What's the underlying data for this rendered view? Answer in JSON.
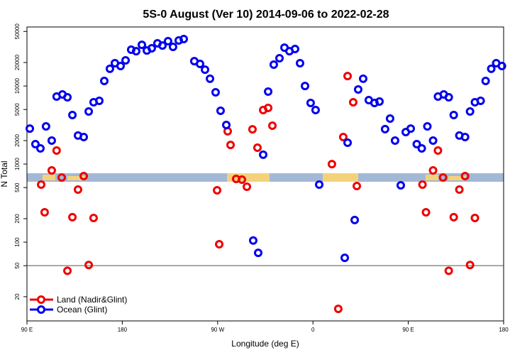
{
  "chart_data": {
    "type": "scatter",
    "title": "5S-0 August (Ver 10)   2014-09-06 to 2022-02-28",
    "xlabel": "Longitude (deg E)",
    "ylabel": "N Total",
    "xlim": [
      90,
      540
    ],
    "xticks": [
      {
        "value": 90,
        "label": "90 E"
      },
      180,
      {
        "value": 270,
        "label": "90 W"
      },
      {
        "value": 360,
        "label": "0"
      },
      {
        "value": 450,
        "label": "90 E"
      },
      {
        "value": 540,
        "label": "180"
      }
    ],
    "ylim": [
      9.8,
      57000
    ],
    "log_y": true,
    "yticks": [
      20,
      50,
      100,
      200,
      500,
      1000,
      2000,
      5000,
      10000,
      20000,
      50000
    ],
    "hline": 50,
    "legend": "lower left",
    "series": [
      {
        "name": "Land (Nadir&Glint)",
        "color": "#ee0000",
        "x": [
          103.4,
          106.7,
          113.4,
          118,
          122.8,
          128.2,
          132.9,
          138.2,
          143.6,
          148.3,
          152.9,
          269.5,
          271.5,
          279.5,
          282.2,
          287.5,
          292.9,
          297.6,
          302.9,
          307.6,
          313,
          317.7,
          321.7,
          377.9,
          383.9,
          388.6,
          392.7,
          398,
          401.4,
          463.4,
          466.7,
          473.4,
          478,
          482.8,
          488.2,
          492.9,
          498.2,
          503.6,
          508.3,
          512.9
        ],
        "values": [
          546,
          241,
          830,
          1490,
          673,
          43,
          209,
          472,
          702,
          51,
          204,
          462,
          94,
          2630,
          1760,
          646,
          632,
          513,
          2790,
          1620,
          4920,
          5240,
          3100,
          1000,
          14,
          2220,
          13400,
          6200,
          524,
          546,
          241,
          830,
          1490,
          673,
          43,
          209,
          472,
          702,
          51,
          204
        ]
      },
      {
        "name": "Ocean (Glint)",
        "color": "#0000ee",
        "x": [
          92.7,
          98,
          102.7,
          108,
          113.4,
          118,
          123.5,
          128.2,
          132.9,
          138.2,
          143.6,
          148.3,
          152.9,
          158.3,
          163,
          168.3,
          173,
          178.4,
          183.1,
          188.4,
          193.1,
          198.5,
          203.2,
          207.8,
          213.2,
          217.9,
          223.2,
          227.9,
          233.3,
          238,
          248,
          253.4,
          258.1,
          262.8,
          268.1,
          272.8,
          278.2,
          303.6,
          308.3,
          313,
          317.7,
          323,
          328.4,
          333.1,
          337.8,
          343.1,
          347.8,
          352.5,
          357.8,
          362.5,
          365.9,
          390,
          392.7,
          399.4,
          402.7,
          407.4,
          412.7,
          418.1,
          422.8,
          428.1,
          432.8,
          437.5,
          442.9,
          447.6,
          452.3,
          458,
          462.7,
          468,
          473.4,
          478,
          483.5,
          488.2,
          492.9,
          498.2,
          503.6,
          508.3,
          512.9,
          518.3,
          523,
          528.3,
          533,
          538.4
        ],
        "values": [
          2850,
          1800,
          1590,
          3040,
          2000,
          7320,
          7800,
          7170,
          4250,
          2320,
          2220,
          4720,
          6200,
          6460,
          11600,
          16600,
          19600,
          18000,
          21300,
          29200,
          27900,
          33700,
          28500,
          30400,
          35200,
          33000,
          37500,
          31700,
          38300,
          39900,
          20800,
          19200,
          16200,
          12400,
          8300,
          4820,
          3170,
          105,
          73,
          1320,
          8480,
          18800,
          22700,
          31000,
          27900,
          29800,
          19600,
          10000,
          6070,
          4920,
          546,
          63,
          1880,
          192,
          9020,
          12400,
          6590,
          6070,
          6320,
          2800,
          3830,
          2000,
          535,
          2570,
          2850,
          1800,
          1590,
          3040,
          2000,
          7320,
          7800,
          7170,
          4250,
          2320,
          2220,
          4720,
          6200,
          6460,
          11600,
          16600,
          19600,
          18000
        ]
      }
    ]
  }
}
